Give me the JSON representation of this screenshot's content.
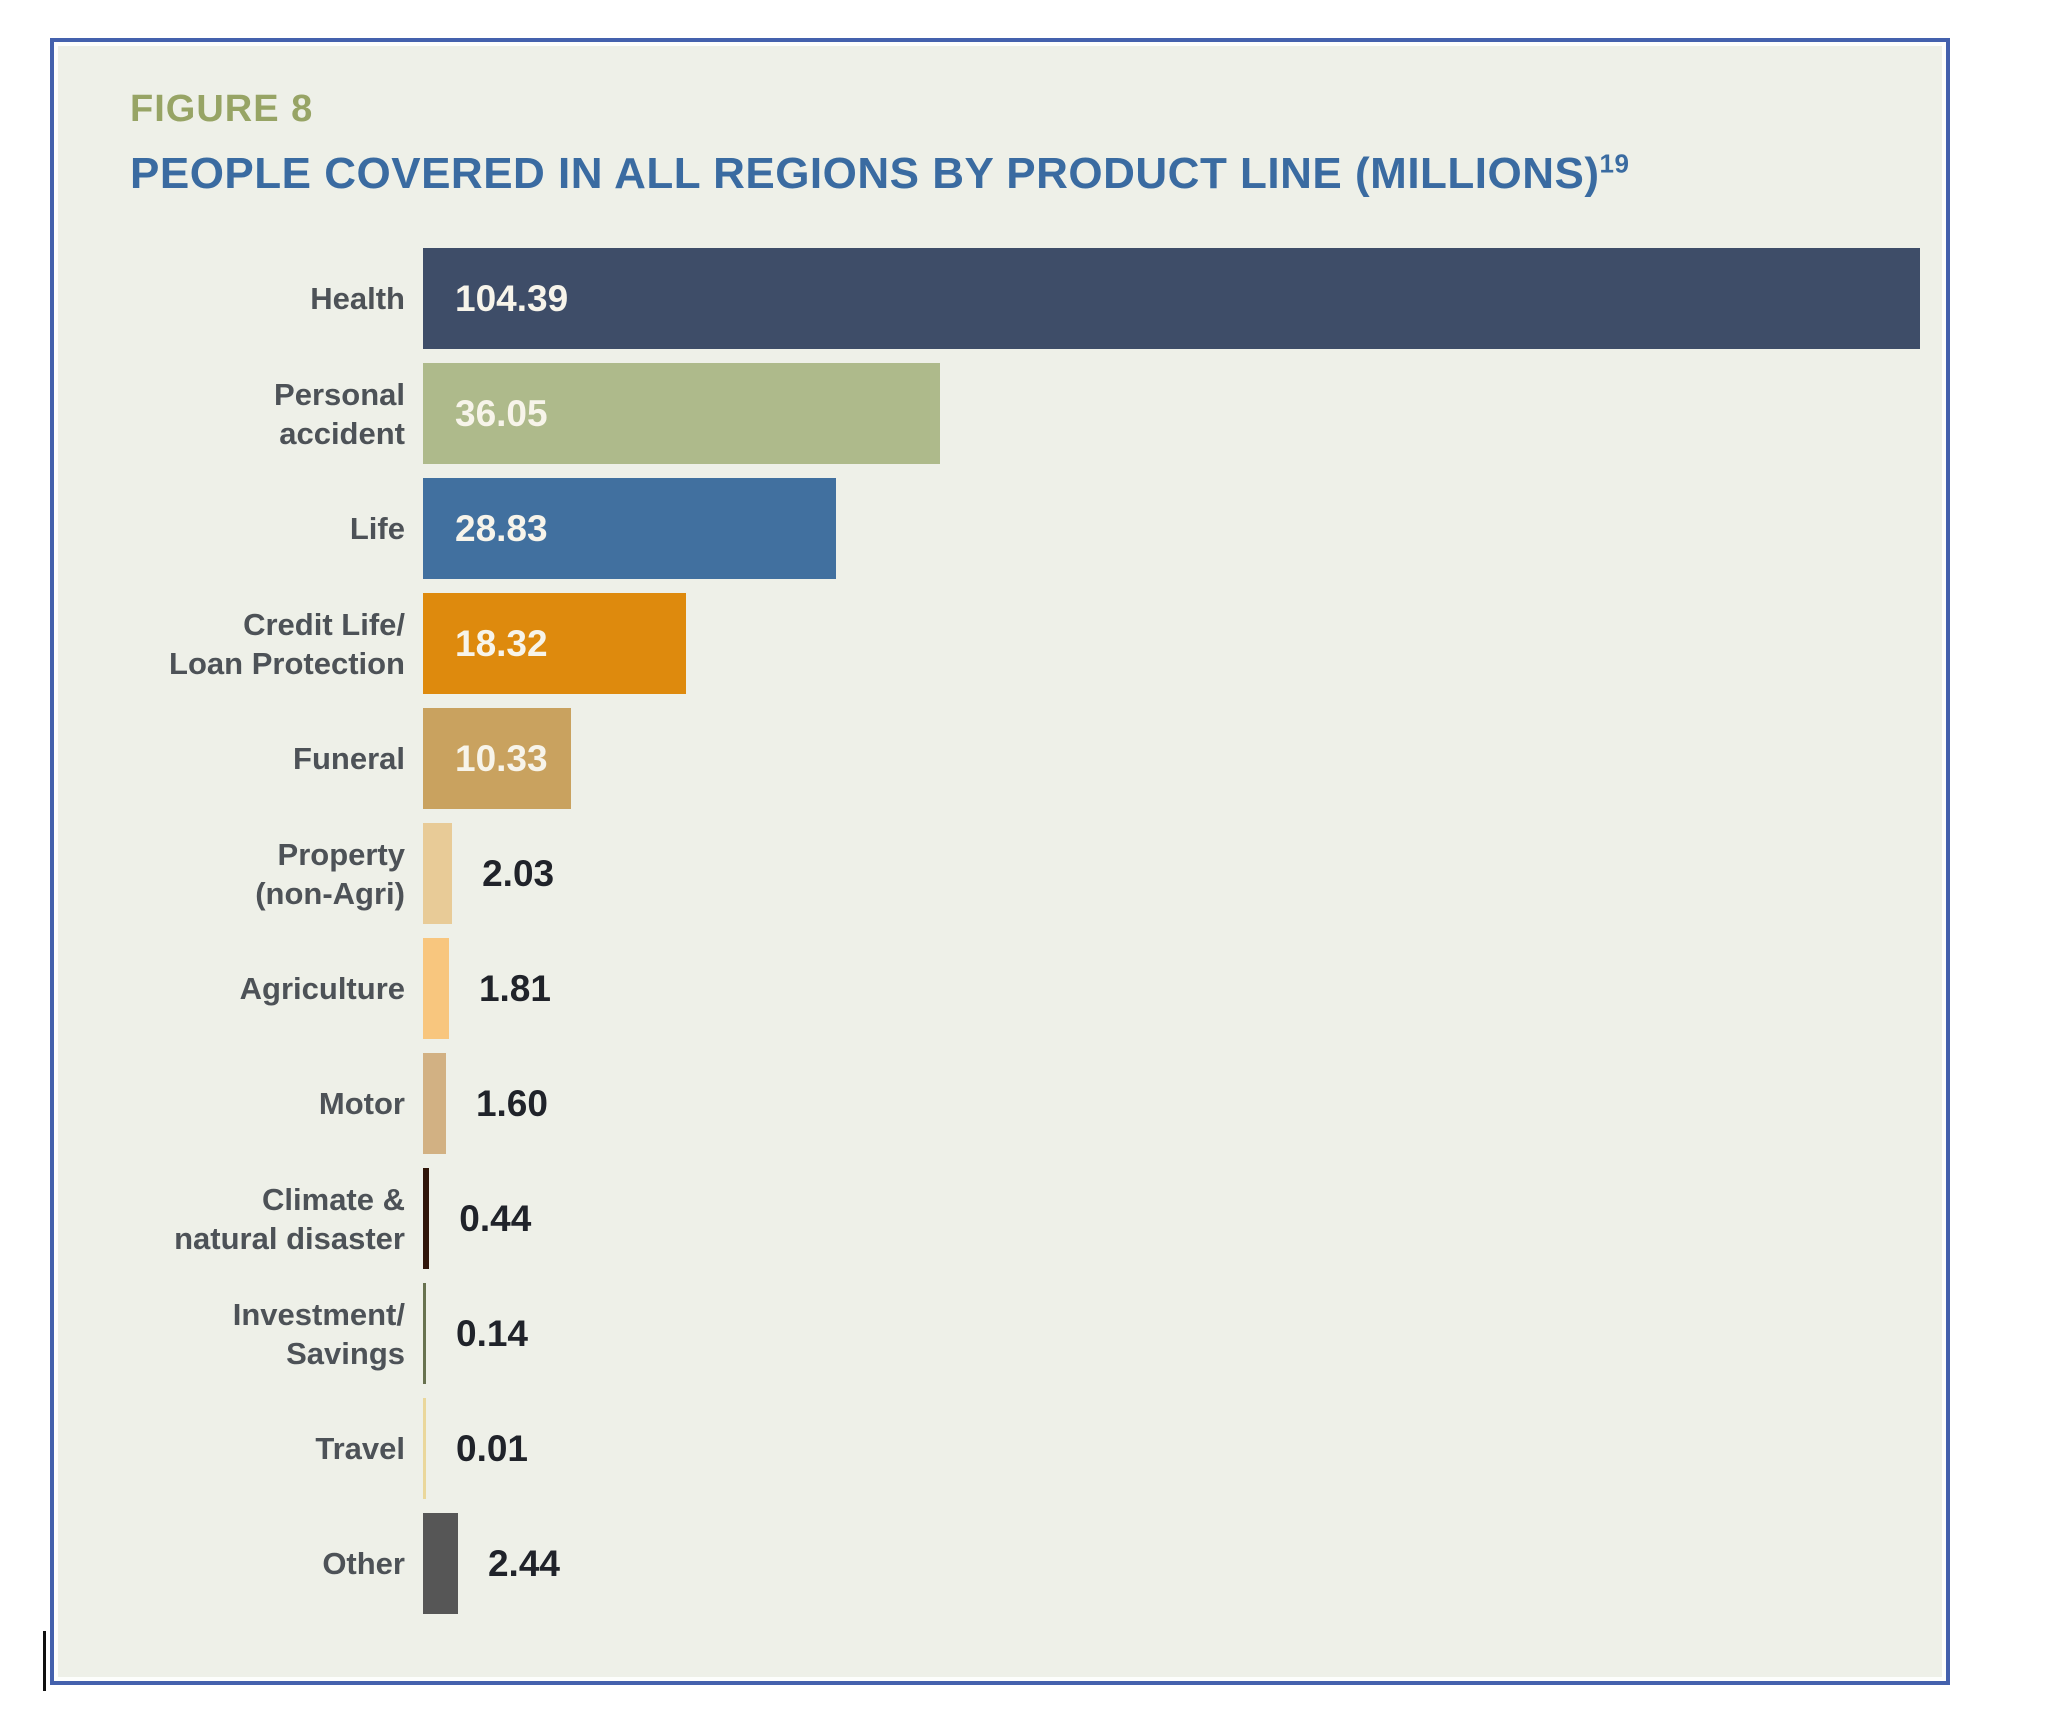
{
  "figure": {
    "label": "FIGURE 8",
    "title": "PEOPLE COVERED IN ALL REGIONS BY PRODUCT LINE (MILLIONS)",
    "footnote_ref": "19"
  },
  "colors": {
    "panel_border": "#4461ad",
    "panel_background": "#eef0e8",
    "figure_label": "#97a465",
    "figure_title": "#3a6ba1",
    "category_label": "#4d5257",
    "value_inside_text": "#f7f4ea",
    "value_outside_text": "#20232a"
  },
  "chart_data": {
    "type": "bar",
    "orientation": "horizontal",
    "title": "PEOPLE COVERED IN ALL REGIONS BY PRODUCT LINE (MILLIONS)",
    "unit": "millions of people",
    "xlim": [
      0,
      104.39
    ],
    "grid": false,
    "legend": false,
    "categories": [
      "Health",
      "Personal accident",
      "Life",
      "Credit Life/Loan Protection",
      "Funeral",
      "Property (non-Agri)",
      "Agriculture",
      "Motor",
      "Climate & natural disaster",
      "Investment/Savings",
      "Travel",
      "Other"
    ],
    "values": [
      104.39,
      36.05,
      28.83,
      18.32,
      10.33,
      2.03,
      1.81,
      1.6,
      0.44,
      0.14,
      0.01,
      2.44
    ],
    "bars": [
      {
        "id": "health",
        "label_lines": [
          "Health"
        ],
        "value": 104.39,
        "value_text": "104.39",
        "color": "#3e4d68",
        "value_inside": true
      },
      {
        "id": "personal-accident",
        "label_lines": [
          "Personal",
          "accident"
        ],
        "value": 36.05,
        "value_text": "36.05",
        "color": "#aeba8b",
        "value_inside": true
      },
      {
        "id": "life",
        "label_lines": [
          "Life"
        ],
        "value": 28.83,
        "value_text": "28.83",
        "color": "#41709f",
        "value_inside": true
      },
      {
        "id": "credit-life-loan-protection",
        "label_lines": [
          "Credit Life/",
          "Loan Protection"
        ],
        "value": 18.32,
        "value_text": "18.32",
        "color": "#de8a0d",
        "value_inside": true
      },
      {
        "id": "funeral",
        "label_lines": [
          "Funeral"
        ],
        "value": 10.33,
        "value_text": "10.33",
        "color": "#c9a25f",
        "value_inside": true
      },
      {
        "id": "property-non-agri",
        "label_lines": [
          "Property",
          "(non-Agri)"
        ],
        "value": 2.03,
        "value_text": "2.03",
        "color": "#e8cb97",
        "value_inside": false
      },
      {
        "id": "agriculture",
        "label_lines": [
          "Agriculture"
        ],
        "value": 1.81,
        "value_text": "1.81",
        "color": "#f8c67e",
        "value_inside": false
      },
      {
        "id": "motor",
        "label_lines": [
          "Motor"
        ],
        "value": 1.6,
        "value_text": "1.60",
        "color": "#d2b183",
        "value_inside": false
      },
      {
        "id": "climate-natural-disaster",
        "label_lines": [
          "Climate &",
          "natural disaster"
        ],
        "value": 0.44,
        "value_text": "0.44",
        "color": "#30160a",
        "value_inside": false
      },
      {
        "id": "investment-savings",
        "label_lines": [
          "Investment/",
          "Savings"
        ],
        "value": 0.14,
        "value_text": "0.14",
        "color": "#68724f",
        "value_inside": false
      },
      {
        "id": "travel",
        "label_lines": [
          "Travel"
        ],
        "value": 0.01,
        "value_text": "0.01",
        "color": "#ead79b",
        "value_inside": false
      },
      {
        "id": "other",
        "label_lines": [
          "Other"
        ],
        "value": 2.44,
        "value_text": "2.44",
        "color": "#565656",
        "value_inside": false
      }
    ]
  }
}
